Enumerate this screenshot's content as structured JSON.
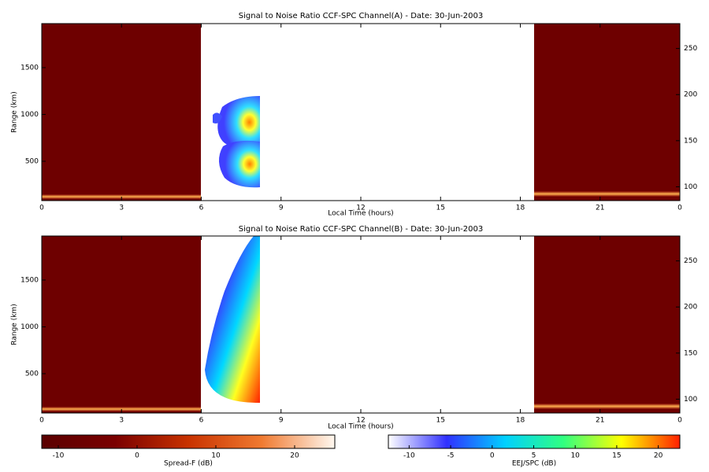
{
  "chart_data": [
    {
      "type": "heatmap",
      "title": "Signal to Noise Ratio CCF-SPC Channel(A) - Date: 30-Jun-2003",
      "xlabel": "Local Time (hours)",
      "ylabel": "Range (km)",
      "xlim": [
        0,
        24
      ],
      "xticks": [
        0,
        3,
        6,
        9,
        12,
        15,
        18,
        21,
        {
          "value": 24,
          "label": "0"
        }
      ],
      "ylim": [
        80,
        1970
      ],
      "yticks": [
        500,
        1000,
        1500
      ],
      "y2lim": [
        85,
        277
      ],
      "y2ticks": [
        100,
        150,
        200,
        250
      ]
    },
    {
      "type": "heatmap",
      "title": "Signal to Noise Ratio CCF-SPC Channel(B) - Date: 30-Jun-2003",
      "xlabel": "Local Time (hours)",
      "ylabel": "Range (km)",
      "xlim": [
        0,
        24
      ],
      "xticks": [
        0,
        3,
        6,
        9,
        12,
        15,
        18,
        21,
        {
          "value": 24,
          "label": "0"
        }
      ],
      "ylim": [
        80,
        1970
      ],
      "yticks": [
        500,
        1000,
        1500
      ],
      "y2lim": [
        85,
        277
      ],
      "y2ticks": [
        100,
        150,
        200,
        250
      ]
    }
  ],
  "colorbars": [
    {
      "label": "Spread-F (dB)",
      "lim": [
        -12.1,
        25.1
      ],
      "ticks": [
        -10,
        0,
        10,
        20
      ],
      "colors": [
        "#5a0000",
        "#7a0000",
        "#c83200",
        "#f07a30",
        "#fff8f0"
      ]
    },
    {
      "label": "EEJ/SPC (dB)",
      "lim": [
        -12.5,
        22.6
      ],
      "ticks": [
        -10,
        -5,
        0,
        5,
        10,
        15,
        20
      ],
      "colors": [
        "#ffffff",
        "#3030ff",
        "#00d0ff",
        "#30ff80",
        "#ffff00",
        "#ff2000"
      ]
    }
  ]
}
